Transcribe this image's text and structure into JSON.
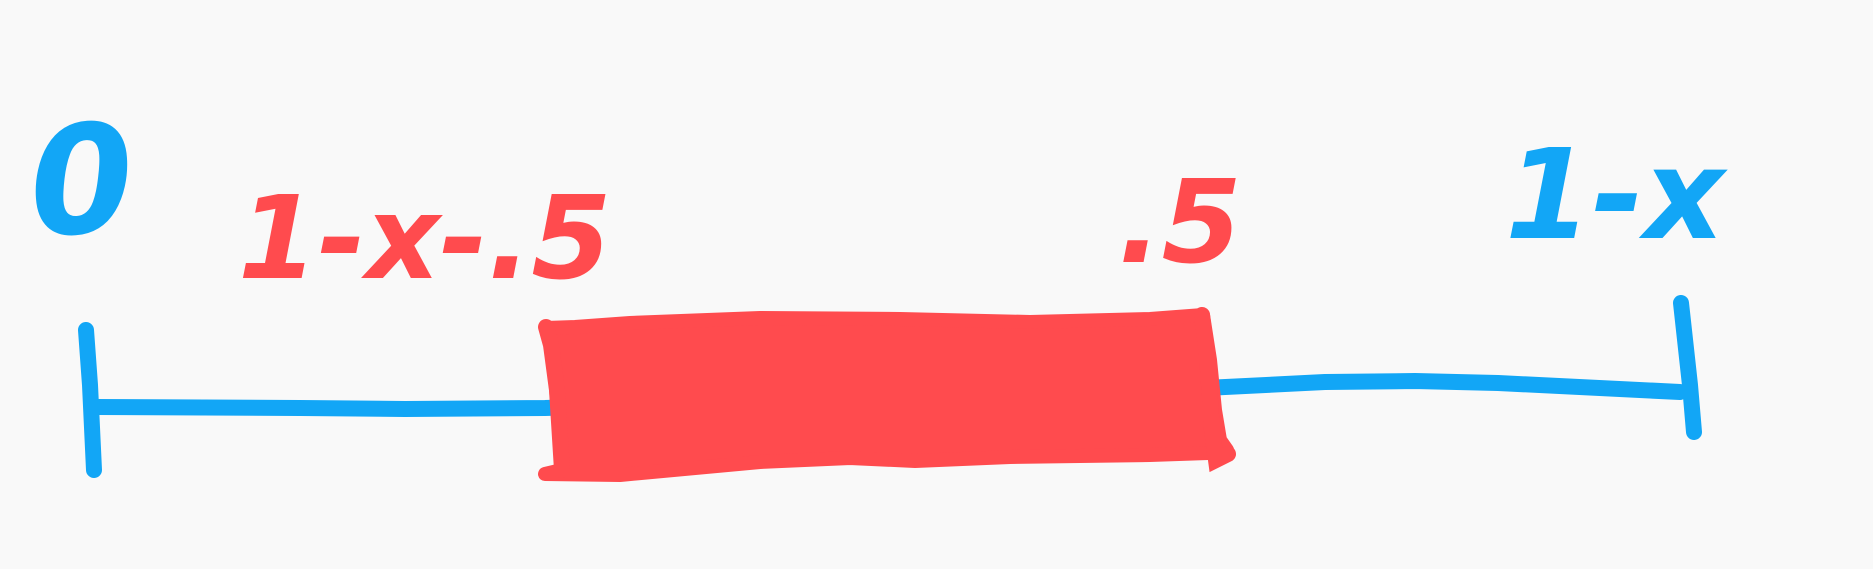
{
  "labels": {
    "left_end": "0",
    "right_end": "1-x",
    "interval_left": "1-x-.5",
    "interval_right": ".5"
  },
  "colors": {
    "background": "#f9f9f9",
    "number_line": "#12a6f6",
    "interval": "#ff4b4e"
  }
}
